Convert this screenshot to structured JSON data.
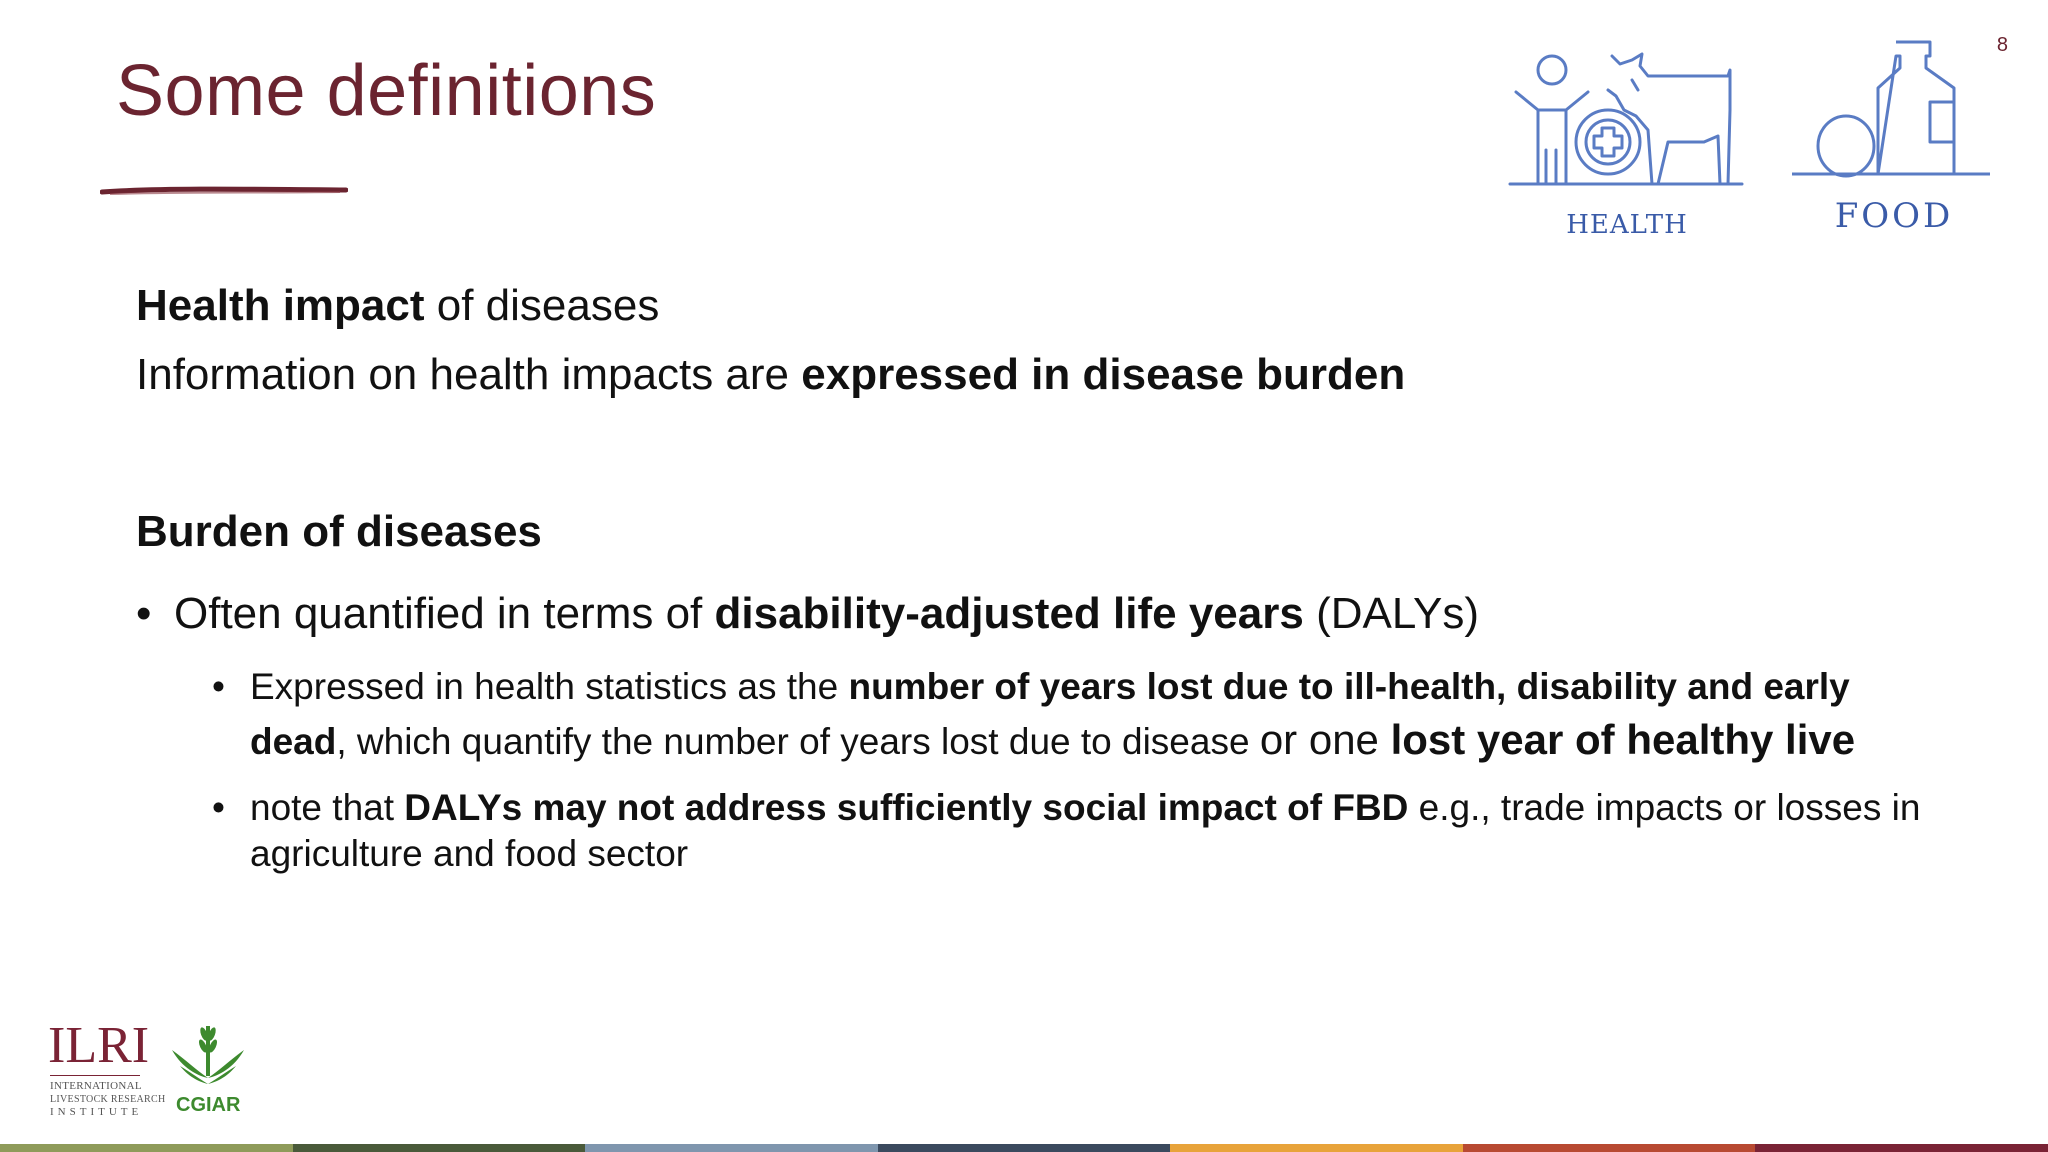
{
  "slide": {
    "title": "Some definitions",
    "page_number": "8"
  },
  "icons": {
    "health": {
      "icon": "health-cow-person-icon",
      "label": "HEALTH"
    },
    "food": {
      "icon": "food-bottle-egg-icon",
      "label": "FOOD"
    }
  },
  "content": {
    "health_impact": {
      "bold": "Health impact",
      "rest": " of diseases"
    },
    "info_line": {
      "normal": "Information on health impacts are ",
      "bold": "expressed in disease burden"
    },
    "burden_heading": "Burden of diseases",
    "bullet_1": {
      "normal_1": "Often quantified in terms of ",
      "bold": "disability-adjusted life years",
      "normal_2": " (DALYs)"
    },
    "sub_bullet_1": {
      "normal_1": "Expressed in health statistics as the ",
      "bold_1": "number of years lost due to ill-health, disability and early dead",
      "normal_2": ", which quantify the number of years lost due to disease ",
      "normal_3": "or one ",
      "bold_2": "lost year of healthy live"
    },
    "sub_bullet_2": {
      "normal_1": "note that ",
      "bold": "DALYs may not address sufficiently social impact of FBD",
      "normal_2": " e.g., trade impacts or losses in agriculture and food sector"
    }
  },
  "logos": {
    "ilri": {
      "name": "ILRI",
      "line_1": "INTERNATIONAL",
      "line_2": "LIVESTOCK RESEARCH",
      "line_3": "INSTITUTE"
    },
    "cgiar": {
      "name": "CGIAR",
      "icon": "cgiar-wheat-icon"
    }
  },
  "colors": {
    "title": "#6b2430",
    "icon_blue": "#3a5ba8",
    "ilri": "#7a2335",
    "cgiar": "#3d8a2e",
    "bar": [
      "#8f9b5a",
      "#4a5a3a",
      "#7f96ae",
      "#3b4a5e",
      "#e8a33a",
      "#b84a32",
      "#7a2335"
    ]
  }
}
